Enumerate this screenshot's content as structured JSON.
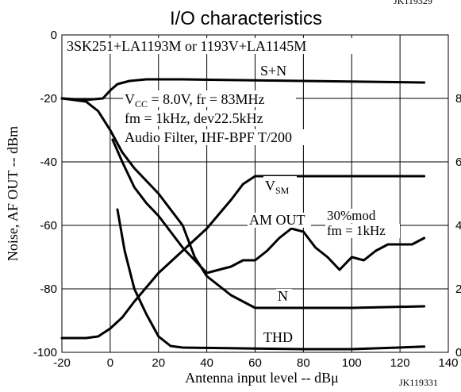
{
  "chart_data": {
    "type": "line",
    "title": "I/O characteristics",
    "top_partial": "JK119329",
    "xlabel": "Antenna input level -- dBμ",
    "ylabel": "Noise, AF OUT -- dBm",
    "xlim": [
      -20,
      140
    ],
    "ylim": [
      -100,
      0
    ],
    "right_ylim": [
      0,
      10
    ],
    "x_ticks": [
      "-20",
      "0",
      "20",
      "40",
      "60",
      "80",
      "100",
      "120",
      "140"
    ],
    "y_ticks": [
      "0",
      "-20",
      "-40",
      "-60",
      "-80",
      "-100"
    ],
    "right_ticks": [
      "8",
      "6",
      "4",
      "2",
      "0"
    ],
    "grid": true,
    "annotations": {
      "device": "3SK251+LA1193M or 1193V+LA1145M",
      "vcc": "V",
      "vcc_sub": "CC",
      "vcc_rest": " = 8.0V, fr = 83MHz",
      "fm": "fm = 1kHz, dev22.5kHz",
      "filter": "Audio Filter, IHF-BPF T/200",
      "mod": "30%mod",
      "mod_fm": "fm = 1kHz",
      "code": "JK119331"
    },
    "series": [
      {
        "name": "S+N",
        "x": [
          -20,
          -10,
          -3,
          0,
          3,
          8,
          15,
          30,
          60,
          90,
          130
        ],
        "y": [
          -20,
          -20.5,
          -20,
          -17.5,
          -15.5,
          -14.5,
          -14,
          -14,
          -14.3,
          -14.6,
          -15
        ]
      },
      {
        "name": "V",
        "name_sub": "SM",
        "x": [
          -20,
          -10,
          -5,
          0,
          5,
          10,
          20,
          30,
          40,
          50,
          55,
          60,
          80,
          100,
          130
        ],
        "y": [
          -95.5,
          -95.5,
          -95,
          -92.5,
          -89,
          -84,
          -75,
          -68,
          -61,
          -52,
          -47,
          -44.5,
          -44.5,
          -44.5,
          -44.5
        ]
      },
      {
        "name": "AM OUT",
        "x": [
          1,
          5,
          10,
          15,
          20,
          25,
          30,
          35,
          40,
          45,
          50,
          55,
          60,
          65,
          70,
          75,
          80,
          85,
          90,
          95,
          100,
          105,
          110,
          115,
          120,
          125,
          130
        ],
        "y": [
          -33,
          -40,
          -48,
          -53,
          -57,
          -62,
          -67,
          -71,
          -75,
          -74,
          -73,
          -71,
          -71,
          -68,
          -64,
          -61,
          -62,
          -67,
          -70,
          -74,
          -70,
          -71,
          -68,
          -66,
          -66,
          -66,
          -64
        ]
      },
      {
        "name": "N",
        "x": [
          -20,
          -10,
          -5,
          0,
          5,
          10,
          20,
          30,
          35,
          40,
          50,
          60,
          80,
          100,
          130
        ],
        "y": [
          -20,
          -21,
          -24,
          -30,
          -37,
          -42,
          -50,
          -60,
          -70,
          -76,
          -82,
          -86,
          -86,
          -86,
          -85.5
        ]
      },
      {
        "name": "THD",
        "x": [
          3,
          6,
          10,
          15,
          20,
          25,
          30,
          40,
          60,
          80,
          100,
          130
        ],
        "y": [
          -55,
          -68,
          -80,
          -88,
          -95,
          -98,
          -98.5,
          -98.6,
          -98.8,
          -99,
          -99,
          -98.2
        ]
      }
    ]
  }
}
